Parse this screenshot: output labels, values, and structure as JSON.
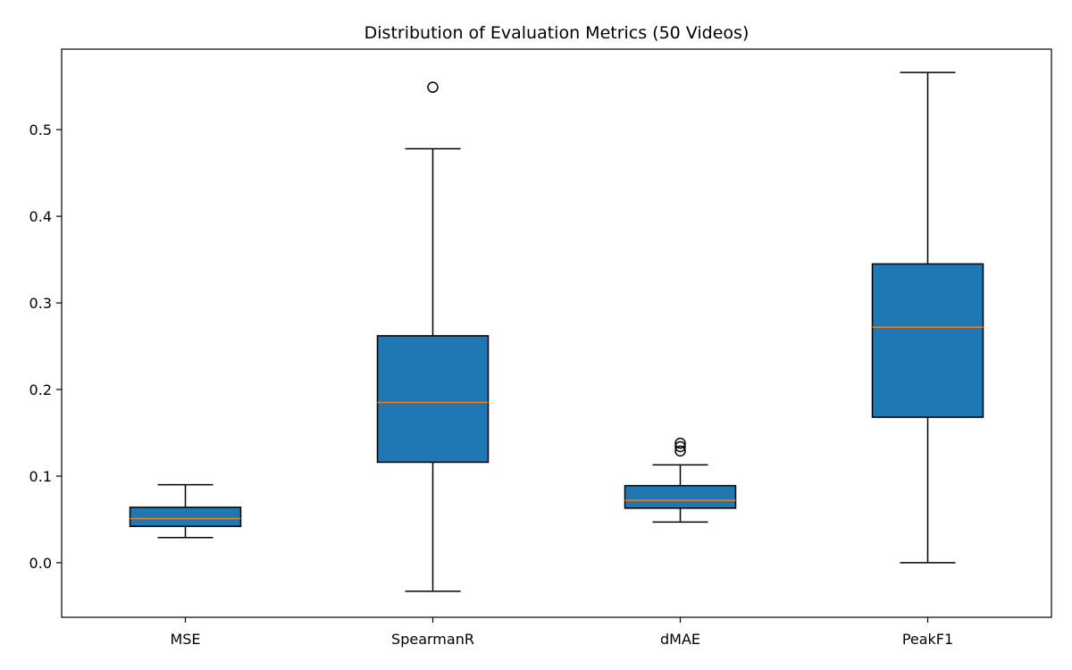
{
  "chart_data": {
    "type": "boxplot",
    "title": "Distribution of Evaluation Metrics (50 Videos)",
    "xlabel": "",
    "ylabel": "",
    "categories": [
      "MSE",
      "SpearmanR",
      "dMAE",
      "PeakF1"
    ],
    "ylim": [
      -0.063,
      0.593
    ],
    "yticks": [
      0.0,
      0.1,
      0.2,
      0.3,
      0.4,
      0.5
    ],
    "ytick_labels": [
      "0.0",
      "0.1",
      "0.2",
      "0.3",
      "0.4",
      "0.5"
    ],
    "grid": false,
    "legend": null,
    "boxes": [
      {
        "category": "MSE",
        "whisker_low": 0.029,
        "q1": 0.042,
        "median": 0.051,
        "q3": 0.064,
        "whisker_high": 0.09,
        "outliers": []
      },
      {
        "category": "SpearmanR",
        "whisker_low": -0.033,
        "q1": 0.116,
        "median": 0.185,
        "q3": 0.262,
        "whisker_high": 0.478,
        "outliers": [
          0.549
        ]
      },
      {
        "category": "dMAE",
        "whisker_low": 0.047,
        "q1": 0.063,
        "median": 0.072,
        "q3": 0.089,
        "whisker_high": 0.113,
        "outliers": [
          0.129,
          0.134,
          0.138
        ]
      },
      {
        "category": "PeakF1",
        "whisker_low": 0.0,
        "q1": 0.168,
        "median": 0.272,
        "q3": 0.345,
        "whisker_high": 0.566,
        "outliers": []
      }
    ],
    "colors": {
      "box_fill": "#1f77b4",
      "box_edge": "#000000",
      "median": "#ff7f0e",
      "whisker": "#000000",
      "outlier": "#000000"
    }
  }
}
